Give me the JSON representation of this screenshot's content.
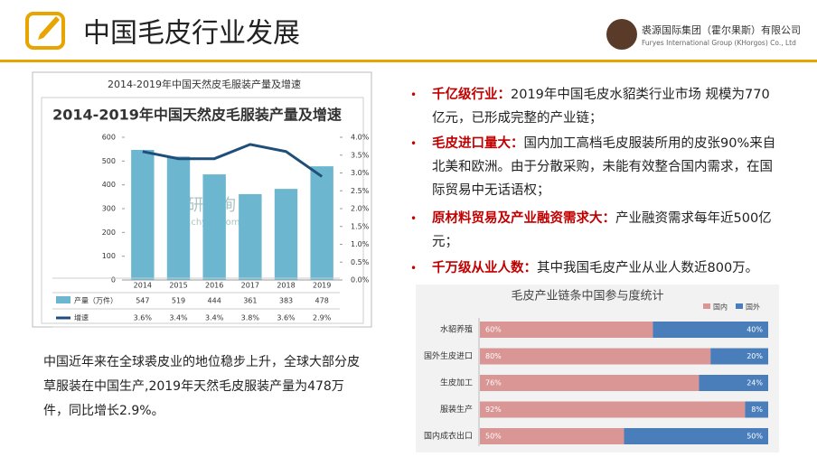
{
  "header": {
    "title": "中国毛皮行业发展",
    "company_cn": "裘源国际集团（霍尔果斯）有限公司",
    "company_en": "Furyes International Group (KHorgos) Co., Ltd"
  },
  "bullets": [
    {
      "head": "千亿级行业：",
      "text": "2019年中国毛皮水貂类行业市场 规模为770亿元，已形成完整的产业链；"
    },
    {
      "head": "毛皮进口量大：",
      "text": "国内加工高档毛皮服装所用的皮张90%来自北美和欧洲。由于分散采购，未能有效整合国内需求，在国际贸易中无话语权；"
    },
    {
      "head": "原材料贸易及产业融资需求大：",
      "text": "产业融资需求每年近500亿元；"
    },
    {
      "head": "千万级从业人数：",
      "text": "其中我国毛皮产业从业人数近800万。"
    }
  ],
  "caption": "中国近年来在全球裘皮业的地位稳步上升，全球大部分皮草服装在中国生产,2019年天然毛皮服装产量为478万件，同比增长2.9%。",
  "chart_data": [
    {
      "type": "bar-line",
      "figure_caption": "2014-2019年中国天然皮毛服装产量及增速",
      "title": "2014-2019年中国天然皮毛服装产量及增速",
      "watermark": "智研咨询",
      "watermark_url": "www.chyxx.com",
      "categories": [
        "2014",
        "2015",
        "2016",
        "2017",
        "2018",
        "2019"
      ],
      "series": [
        {
          "name": "产量（万件）",
          "color": "#6cb6cf",
          "values": [
            547,
            519,
            444,
            361,
            383,
            478
          ]
        },
        {
          "name": "增速",
          "color": "#1f4e79",
          "axis": "y2",
          "values": [
            3.6,
            3.4,
            3.4,
            3.8,
            3.6,
            2.9
          ],
          "value_labels": [
            "3.6%",
            "3.4%",
            "3.4%",
            "3.8%",
            "3.6%",
            "2.9%"
          ]
        }
      ],
      "ylim": [
        0,
        600
      ],
      "yticks": [
        0,
        100,
        200,
        300,
        400,
        500,
        600
      ],
      "y2lim": [
        0,
        4
      ],
      "y2ticks": [
        {
          "value": 0,
          "label": "0.0%"
        },
        {
          "value": 0.5,
          "label": "0.5%"
        },
        {
          "value": 1,
          "label": "1.0%"
        },
        {
          "value": 1.5,
          "label": "1.5%"
        },
        {
          "value": 2,
          "label": "2.0%"
        },
        {
          "value": 2.5,
          "label": "2.5%"
        },
        {
          "value": 3,
          "label": "3.0%"
        },
        {
          "value": 3.5,
          "label": "3.5%"
        },
        {
          "value": 4,
          "label": "4.0%"
        }
      ]
    },
    {
      "type": "stacked-barh",
      "title": "毛皮产业链条中国参与度统计",
      "categories": [
        "水貂养殖",
        "国外生皮进口",
        "生皮加工",
        "服装生产",
        "国内成衣出口"
      ],
      "series": [
        {
          "name": "国内",
          "color": "#d99694",
          "values": [
            60,
            80,
            76,
            92,
            50
          ],
          "value_labels": [
            "60%",
            "80%",
            "76%",
            "92%",
            "50%"
          ]
        },
        {
          "name": "国外",
          "color": "#4a7ebb",
          "values": [
            40,
            20,
            24,
            8,
            50
          ],
          "value_labels": [
            "40%",
            "20%",
            "24%",
            "8%",
            "50%"
          ]
        }
      ],
      "xlim": [
        0,
        100
      ],
      "legend": "top-right"
    }
  ]
}
